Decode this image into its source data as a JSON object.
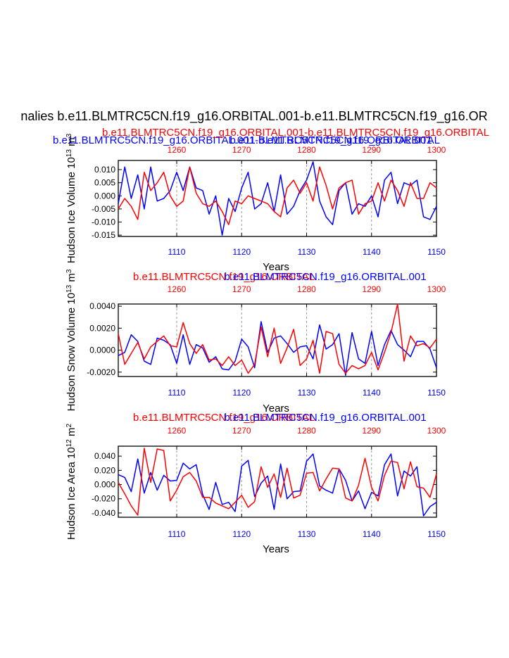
{
  "main_title": "nalies b.e11.BLMTRC5CN.f19_g16.ORBITAL.001-b.e11.BLMTRC5CN.f19_g16.OR",
  "colors": {
    "series_a": "#0000ff",
    "series_b": "#ff0000",
    "axis": "#000000",
    "grid": "#999999"
  },
  "chart_data": [
    {
      "type": "line",
      "panel_title_overlap": true,
      "title_a": "b.e11.BLMTRC5CN.f19_g16.ORBITAL.001-b.e11.BLMTRC5CN.f19_g16.ORBITAL",
      "title_b": "b.e11.BLMTRC5CN.f19_g16.ORBITAL.001-b.e11.BLMTRC5CN.f19_g16.ORBITAL",
      "title_c": "b.e11.BLMTRC5CN.f19_g16.ORBITAL.001",
      "ylabel": "Hudson Ice Volume 10",
      "ylabel_exp": "13",
      "ylabel_unit": " m",
      "ylabel_unit_exp": "3",
      "xlabel": "Years",
      "ylim": [
        -0.0155,
        0.0135
      ],
      "yticks": [
        0.01,
        0.005,
        0.0,
        -0.005,
        -0.01,
        -0.015
      ],
      "ytick_labels": [
        "0.010",
        "0.005",
        "0.000",
        "-0.005",
        "-0.010",
        "-0.015"
      ],
      "bottom_xlim": [
        1101,
        1150
      ],
      "bottom_xticks": [
        "1110",
        "1120",
        "1130",
        "1140",
        "1150"
      ],
      "top_xlim": [
        1251,
        1300
      ],
      "top_xticks": [
        "1260",
        "1270",
        "1280",
        "1290",
        "1300"
      ],
      "series": [
        {
          "name": "b.e11.BLMTRC5CN.f19_g16.ORBITAL.001",
          "color": "blue",
          "values": [
            -0.003,
            0.011,
            -0.001,
            0.008,
            -0.005,
            0.011,
            -0.002,
            -0.001,
            0.002,
            0.009,
            0.002,
            0.011,
            0.003,
            0.002,
            -0.007,
            0.0,
            -0.015,
            -0.001,
            -0.006,
            0.003,
            0.009,
            -0.005,
            -0.003,
            0.005,
            -0.006,
            0.008,
            -0.007,
            -0.004,
            0.002,
            0.006,
            0.013,
            -0.002,
            -0.008,
            -0.011,
            0.002,
            0.005,
            -0.007,
            -0.003,
            -0.004,
            0.0,
            -0.008,
            0.006,
            0.009,
            -0.003,
            0.005,
            0.004,
            0.006,
            -0.008,
            -0.009,
            -0.004
          ]
        },
        {
          "name": "b.e11.BLMTRC5CN.f19_g16.ORBITAL",
          "color": "red",
          "values": [
            -0.005,
            -0.001,
            -0.004,
            -0.009,
            0.009,
            0.002,
            0.005,
            0.009,
            0.0,
            -0.004,
            -0.002,
            0.011,
            0.001,
            -0.003,
            -0.004,
            -0.002,
            -0.006,
            -0.011,
            -0.002,
            -0.003,
            0.0,
            -0.001,
            -0.002,
            -0.003,
            -0.006,
            -0.008,
            0.003,
            0.006,
            0.001,
            0.005,
            -0.002,
            0.011,
            0.004,
            -0.005,
            0.003,
            0.005,
            0.006,
            -0.007,
            -0.003,
            -0.002,
            0.005,
            -0.002,
            0.006,
            0.002,
            -0.004,
            0.005,
            -0.001,
            -0.001,
            0.005,
            0.003
          ]
        }
      ]
    },
    {
      "type": "line",
      "panel_title_overlap": false,
      "title_a": "b.e11.BLMTRC5CN.f19_g16.ORBITAL.001",
      "title_b": "b.e11.BLMTRC5CN.f19_g16.ORBITAL",
      "ylabel": "Hudson Snow Volume 10",
      "ylabel_exp": "13",
      "ylabel_unit": " m",
      "ylabel_unit_exp": "3",
      "xlabel": "Years",
      "ylim": [
        -0.0024,
        0.0042
      ],
      "yticks": [
        0.004,
        0.002,
        0.0,
        -0.002
      ],
      "ytick_labels": [
        "0.0040",
        "0.0020",
        "0.0000",
        "-0.0020"
      ],
      "bottom_xlim": [
        1101,
        1150
      ],
      "bottom_xticks": [
        "1110",
        "1120",
        "1130",
        "1140",
        "1150"
      ],
      "top_xlim": [
        1251,
        1300
      ],
      "top_xticks": [
        "1260",
        "1270",
        "1280",
        "1290",
        "1300"
      ],
      "series": [
        {
          "name": "b.e11.BLMTRC5CN.f19_g16.ORBITAL.001",
          "color": "blue",
          "values": [
            -0.0005,
            -0.0002,
            0.0014,
            0.0008,
            -0.001,
            -0.0013,
            0.0011,
            0.0009,
            0.0005,
            -0.0012,
            0.0014,
            -0.0013,
            0.0005,
            0.0002,
            -0.0011,
            -0.0006,
            -0.0017,
            -0.0018,
            -0.001,
            0.001,
            0.0003,
            -0.0016,
            0.0026,
            -0.0002,
            0.0011,
            0.0013,
            0.0006,
            -0.0002,
            0.0003,
            0.0004,
            -0.0008,
            0.0023,
            0.0001,
            0.0005,
            0.0015,
            -0.0023,
            0.0016,
            -0.0008,
            -0.0012,
            0.0017,
            -0.0014,
            0.0005,
            0.0018,
            0.0005,
            0.0,
            -0.0006,
            0.0008,
            0.0008,
            0.0001,
            -0.0016
          ]
        },
        {
          "name": "b.e11.BLMTRC5CN.f19_g16.ORBITAL",
          "color": "red",
          "values": [
            0.0015,
            -0.0013,
            -0.0003,
            0.0007,
            -0.0008,
            0.0003,
            0.0008,
            0.0013,
            0.0004,
            0.0003,
            0.0025,
            0.0006,
            -0.0003,
            0.0005,
            -0.0009,
            -0.0008,
            -0.0014,
            -0.0006,
            -0.0014,
            -0.0009,
            -0.0021,
            -0.0013,
            0.0021,
            -0.0006,
            0.002,
            -0.0012,
            0.0002,
            0.0019,
            -0.0014,
            -0.0008,
            0.0009,
            -0.0021,
            0.0017,
            0.0015,
            -0.0013,
            -0.0021,
            -0.0014,
            -0.0017,
            -0.0014,
            -0.0002,
            -0.0018,
            -0.0002,
            0.0016,
            0.0042,
            -0.001,
            0.0013,
            0.0004,
            0.0006,
            0.0002,
            0.001
          ]
        }
      ]
    },
    {
      "type": "line",
      "panel_title_overlap": false,
      "title_a": "b.e11.BLMTRC5CN.f19_g16.ORBITAL.001",
      "title_b": "b.e11.BLMTRC5CN.f19_g16.ORBITAL",
      "ylabel": "Hudson Ice Area 10",
      "ylabel_exp": "12",
      "ylabel_unit": " m",
      "ylabel_unit_exp": "2",
      "xlabel": "Years",
      "ylim": [
        -0.046,
        0.054
      ],
      "yticks": [
        0.04,
        0.02,
        0.0,
        -0.02,
        -0.04
      ],
      "ytick_labels": [
        "0.040",
        "0.020",
        "0.000",
        "-0.020",
        "-0.040"
      ],
      "bottom_xlim": [
        1101,
        1150
      ],
      "bottom_xticks": [
        "1110",
        "1120",
        "1130",
        "1140",
        "1150"
      ],
      "top_xlim": [
        1251,
        1300
      ],
      "top_xticks": [
        "1260",
        "1270",
        "1280",
        "1290",
        "1300"
      ],
      "series": [
        {
          "name": "b.e11.BLMTRC5CN.f19_g16.ORBITAL.001",
          "color": "blue",
          "values": [
            0.014,
            0.01,
            -0.01,
            0.036,
            -0.012,
            0.017,
            -0.008,
            0.013,
            0.005,
            0.006,
            0.03,
            0.022,
            0.028,
            -0.014,
            -0.035,
            0.003,
            -0.028,
            -0.025,
            -0.038,
            0.026,
            0.034,
            -0.017,
            0.002,
            0.012,
            -0.035,
            0.029,
            -0.02,
            -0.01,
            -0.009,
            0.033,
            0.043,
            -0.002,
            -0.008,
            -0.012,
            0.022,
            0.006,
            -0.023,
            -0.009,
            -0.034,
            -0.011,
            -0.016,
            0.028,
            0.043,
            -0.016,
            0.019,
            0.012,
            0.025,
            -0.044,
            -0.031,
            -0.025
          ]
        },
        {
          "name": "b.e11.BLMTRC5CN.f19_g16.ORBITAL",
          "color": "red",
          "values": [
            0.003,
            -0.013,
            -0.03,
            -0.043,
            0.051,
            0.003,
            0.05,
            0.048,
            -0.023,
            -0.008,
            0.011,
            0.017,
            0.005,
            -0.018,
            -0.018,
            -0.026,
            -0.03,
            -0.034,
            -0.025,
            -0.015,
            -0.032,
            -0.024,
            0.025,
            -0.004,
            0.015,
            -0.018,
            0.023,
            -0.019,
            -0.015,
            0.016,
            0.017,
            -0.009,
            0.008,
            0.023,
            0.022,
            -0.019,
            -0.023,
            -0.001,
            0.037,
            -0.004,
            -0.023,
            0.013,
            0.033,
            0.031,
            -0.006,
            0.032,
            -0.003,
            -0.005,
            -0.018,
            0.015
          ]
        }
      ]
    }
  ]
}
